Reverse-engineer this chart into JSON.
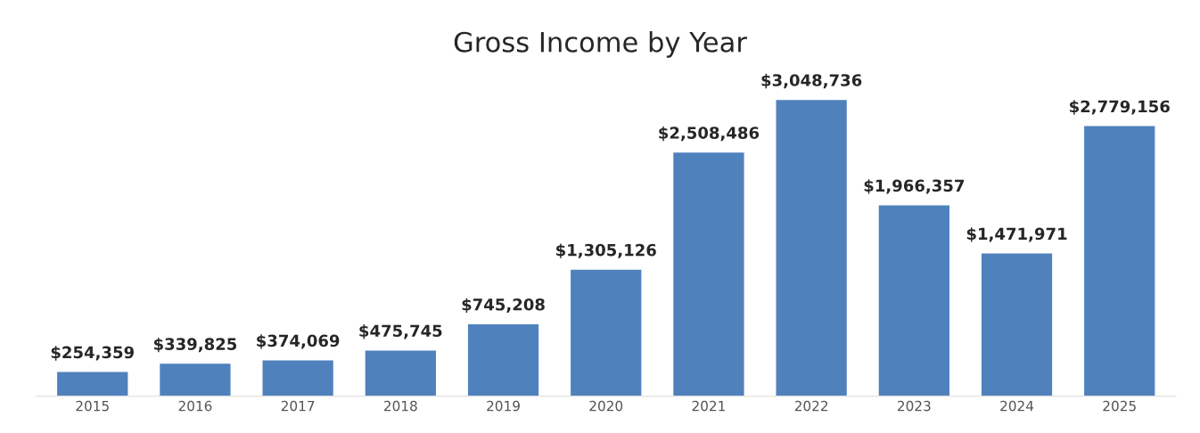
{
  "chart_data": {
    "type": "bar",
    "title": "Gross Income by Year",
    "categories": [
      "2015",
      "2016",
      "2017",
      "2018",
      "2019",
      "2020",
      "2021",
      "2022",
      "2023",
      "2024",
      "2025"
    ],
    "values": [
      254359,
      339825,
      374069,
      475745,
      745208,
      1305126,
      2508486,
      3048736,
      1966357,
      1471971,
      2779156
    ],
    "color": "#4f81bd",
    "value_labels": [
      "$254,359",
      "$339,825",
      "$374,069",
      "$475,745",
      "$745,208",
      "$1,305,126",
      "$2,508,486",
      "$3,048,736",
      "$1,966,357",
      "$1,471,971",
      "$2,779,156"
    ],
    "tick_labels": "x",
    "grid": false
  }
}
